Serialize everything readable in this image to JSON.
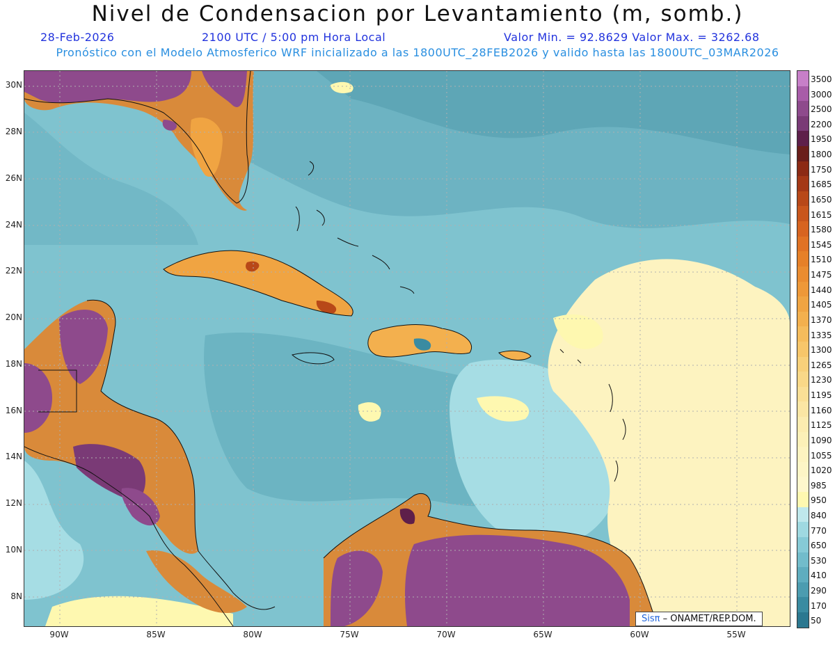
{
  "header": {
    "title": "Nivel de Condensacion por Levantamiento (m, somb.)",
    "date": "28-Feb-2026",
    "time": "2100 UTC / 5:00 pm Hora Local",
    "minmax": "Valor Min. = 92.8629   Valor Max. = 3262.68",
    "model_info": "Pronóstico con el Modelo Atmosferico WRF inicializado a las 1800UTC_28FEB2026 y valido hasta las  1800UTC_03MAR2026"
  },
  "axes": {
    "lat_labels": [
      "30N",
      "28N",
      "26N",
      "24N",
      "22N",
      "20N",
      "18N",
      "16N",
      "14N",
      "12N",
      "10N",
      "8N"
    ],
    "lat_values": [
      30,
      28,
      26,
      24,
      22,
      20,
      18,
      16,
      14,
      12,
      10,
      8
    ],
    "lon_labels": [
      "90W",
      "85W",
      "80W",
      "75W",
      "70W",
      "65W",
      "60W",
      "55W"
    ],
    "lon_values": [
      -90,
      -85,
      -80,
      -75,
      -70,
      -65,
      -60,
      -55
    ]
  },
  "colorbar": {
    "labels": [
      "3500",
      "3000",
      "2500",
      "2200",
      "1950",
      "1800",
      "1750",
      "1685",
      "1650",
      "1615",
      "1580",
      "1545",
      "1510",
      "1475",
      "1440",
      "1405",
      "1370",
      "1335",
      "1300",
      "1265",
      "1230",
      "1195",
      "1160",
      "1125",
      "1090",
      "1055",
      "1020",
      "985",
      "950",
      "840",
      "770",
      "650",
      "530",
      "410",
      "290",
      "170",
      "50"
    ],
    "colors": [
      "#c77fc8",
      "#a85ca8",
      "#8e4a8c",
      "#7a3a76",
      "#5e1f4a",
      "#6a1e1a",
      "#8c2a14",
      "#a43816",
      "#b84818",
      "#c9561c",
      "#d76420",
      "#e07224",
      "#e68028",
      "#ea8c30",
      "#ee9838",
      "#f0a442",
      "#f3b04e",
      "#f5bc5c",
      "#f7c66a",
      "#f8d07a",
      "#f9d888",
      "#fadf96",
      "#fbe6a4",
      "#fcecb0",
      "#fcf0b8",
      "#fdf3c0",
      "#fdf5c6",
      "#fef7cc",
      "#fef8b0",
      "#bfe8ec",
      "#9fd9e1",
      "#86cad6",
      "#72bccb",
      "#5fadbf",
      "#4c9cb0",
      "#3a8ba1",
      "#2b7890"
    ]
  },
  "watermark": {
    "logo_text": "Sis",
    "logo_pi": "π",
    "org": "– ONAMET/REP.DOM."
  }
}
